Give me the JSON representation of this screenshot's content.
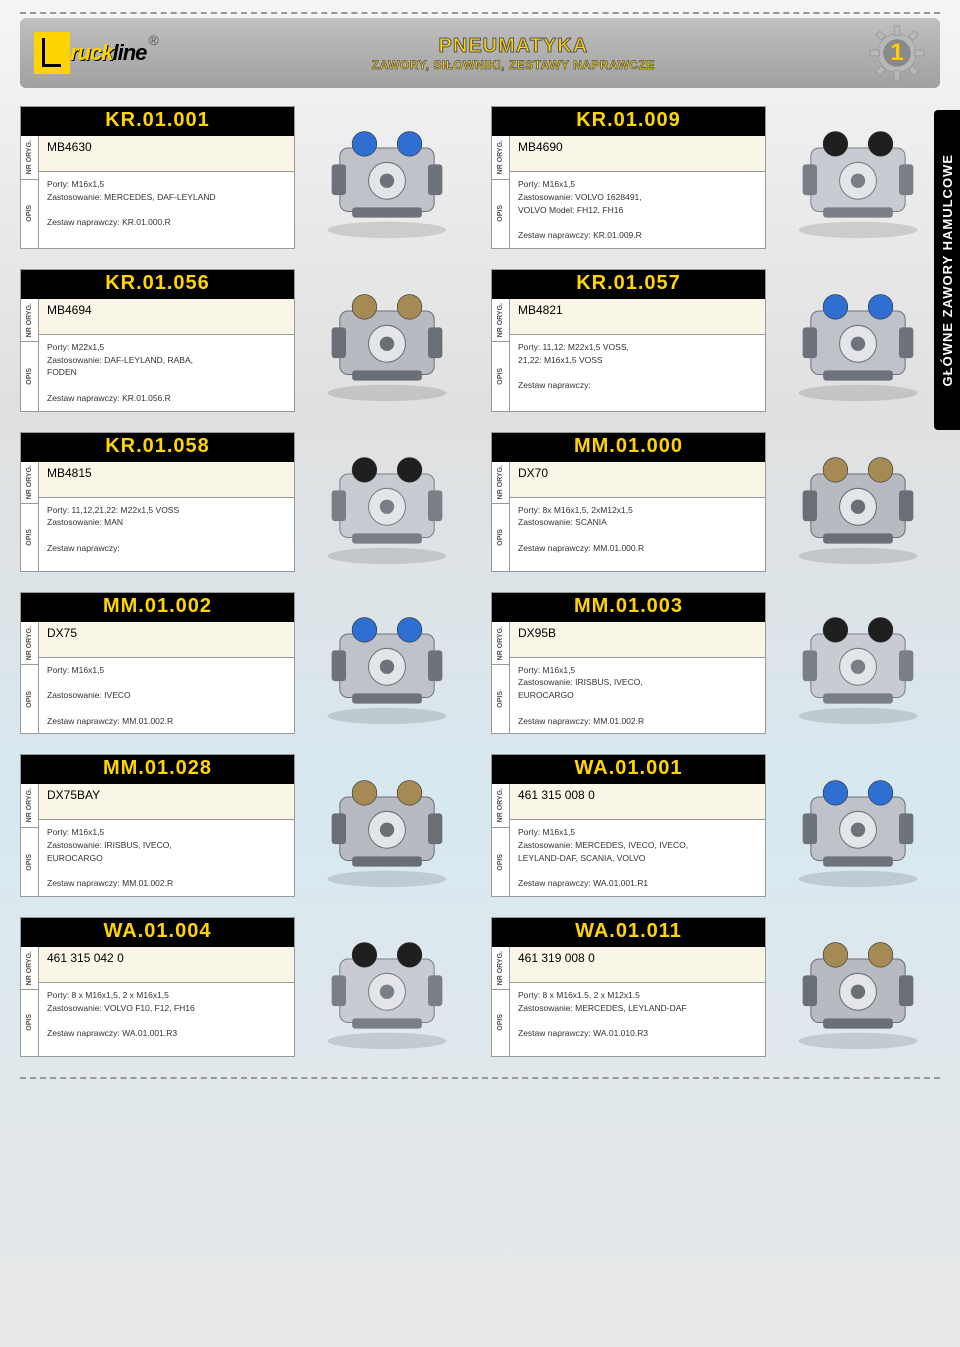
{
  "header": {
    "title_line1": "PNEUMATYKA",
    "title_line2": "ZAWORY, SIŁOWNIKI, ZESTAWY NAPRAWCZE",
    "page_number": "1",
    "logo_text_1": "ruck",
    "logo_text_2": "line",
    "registered": "®"
  },
  "side_tab": "GŁÓWNE ZAWORY HAMULCOWE",
  "labels": {
    "nr_oryg": "NR ORYG.",
    "opis": "OPIS"
  },
  "colors": {
    "accent_yellow": "#ffd400",
    "card_header_bg": "#000000",
    "oe_bg": "#f9f6e8",
    "border": "#999999"
  },
  "products": [
    {
      "sku": "KR.01.001",
      "oe": "MB4630",
      "desc": [
        "Porty: M16x1,5",
        "Zastosowanie: MERCEDES, DAF-LEYLAND",
        "",
        "Zestaw naprawczy: KR.01.000.R"
      ]
    },
    {
      "sku": "KR.01.009",
      "oe": "MB4690",
      "desc": [
        "Porty: M16x1,5",
        "Zastosowanie: VOLVO 1628491,",
        "VOLVO Model: FH12, FH16",
        "",
        "Zestaw naprawczy: KR.01.009.R"
      ]
    },
    {
      "sku": "KR.01.056",
      "oe": "MB4694",
      "desc": [
        "Porty: M22x1,5",
        "Zastosowanie: DAF-LEYLAND, RABA,",
        "FODEN",
        "",
        "Zestaw naprawczy: KR.01.056.R"
      ]
    },
    {
      "sku": "KR.01.057",
      "oe": "MB4821",
      "desc": [
        "Porty: 11,12: M22x1,5 VOSS,",
        "21,22: M16x1,5 VOSS",
        "",
        "Zestaw naprawczy:"
      ]
    },
    {
      "sku": "KR.01.058",
      "oe": "MB4815",
      "desc": [
        "Porty: 11,12,21,22: M22x1,5 VOSS",
        "Zastosowanie: MAN",
        "",
        "Zestaw naprawczy:"
      ]
    },
    {
      "sku": "MM.01.000",
      "oe": "DX70",
      "desc": [
        "Porty: 8x M16x1,5, 2xM12x1,5",
        "Zastosowanie: SCANIA",
        "",
        "Zestaw naprawczy: MM.01.000.R"
      ]
    },
    {
      "sku": "MM.01.002",
      "oe": "DX75",
      "desc": [
        "Porty: M16x1,5",
        "",
        "Zastosowanie: IVECO",
        "",
        "Zestaw naprawczy: MM.01.002.R"
      ]
    },
    {
      "sku": "MM.01.003",
      "oe": "DX95B",
      "desc": [
        "Porty: M16x1,5",
        "Zastosowanie: IRISBUS, IVECO,",
        "EUROCARGO",
        "",
        "Zestaw naprawczy: MM.01.002.R"
      ]
    },
    {
      "sku": "MM.01.028",
      "oe": "DX75BAY",
      "desc": [
        "Porty: M16x1,5",
        "Zastosowanie: IRISBUS, IVECO,",
        "EUROCARGO",
        "",
        "Zestaw naprawczy: MM.01.002.R"
      ]
    },
    {
      "sku": "WA.01.001",
      "oe": "461 315 008 0",
      "desc": [
        "Porty: M16x1,5",
        "Zastosowanie: MERCEDES, IVECO, IVECO,",
        "LEYLAND-DAF, SCANIA, VOLVO",
        "",
        "Zestaw naprawczy: WA.01.001.R1"
      ]
    },
    {
      "sku": "WA.01.004",
      "oe": "461 315 042 0",
      "desc": [
        "Porty: 8 x M16x1,5, 2 x M16x1,5",
        "Zastosowanie: VOLVO F10, F12, FH16",
        "",
        "Zestaw naprawczy: WA.01.001.R3"
      ]
    },
    {
      "sku": "WA.01.011",
      "oe": "461 319 008 0",
      "desc": [
        "Porty: 8 x M16x1.5, 2 x M12x1.5",
        "Zastosowanie: MERCEDES, LEYLAND-DAF",
        "",
        "Zestaw naprawczy: WA.01.010.R3"
      ]
    }
  ]
}
